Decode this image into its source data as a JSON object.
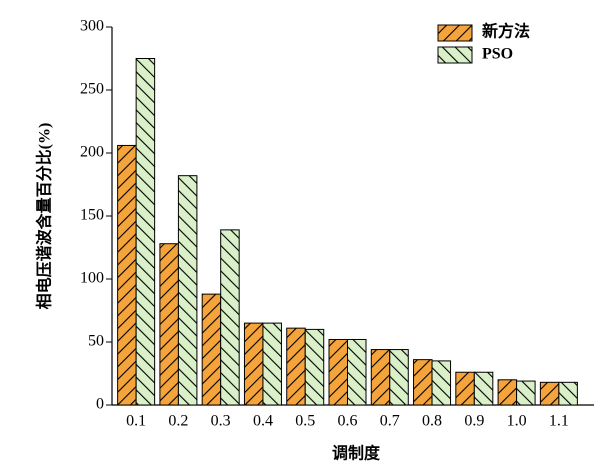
{
  "chart_data": {
    "type": "bar",
    "y_label": "相电压谐波含量百分比(%)",
    "x_label": "调制度",
    "categories": [
      "0.1",
      "0.2",
      "0.3",
      "0.4",
      "0.5",
      "0.6",
      "0.7",
      "0.8",
      "0.9",
      "1.0",
      "1.1"
    ],
    "series": [
      {
        "name": "新方法",
        "color": "#f5a43c",
        "values": [
          206,
          128,
          88,
          65,
          61,
          52,
          44,
          36,
          26,
          20,
          18
        ]
      },
      {
        "name": "PSO",
        "color": "#d9f0c9",
        "values": [
          275,
          182,
          139,
          65,
          60,
          52,
          44,
          35,
          26,
          19,
          18
        ]
      }
    ],
    "ylim": [
      0,
      300
    ],
    "yticks": [
      0,
      50,
      100,
      150,
      200,
      250,
      300
    ],
    "legend": "upper right"
  }
}
